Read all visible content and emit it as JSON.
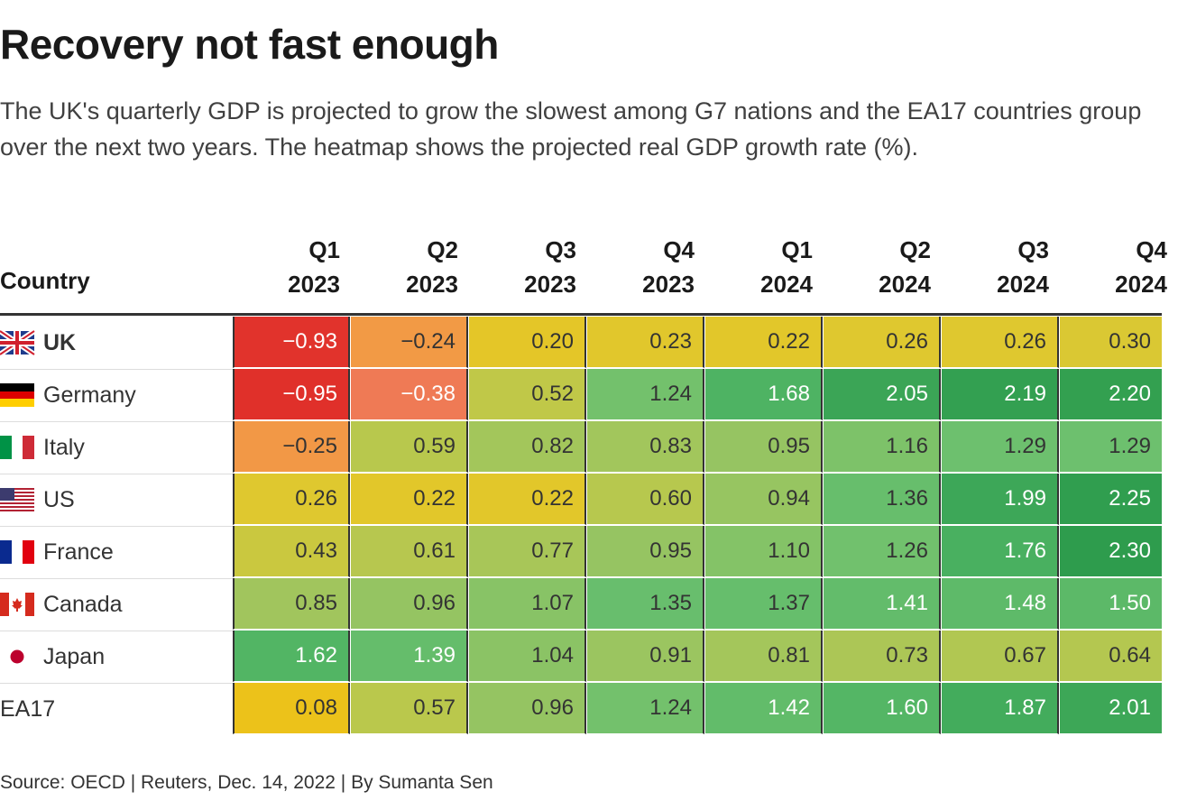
{
  "title": "Recovery not fast enough",
  "subtitle": "The UK's quarterly GDP is projected to grow the slowest among G7 nations and the EA17 countries group over the next two years. The heatmap shows the projected real GDP growth rate (%).",
  "source": "Source: OECD | Reuters, Dec. 14, 2022 | By Sumanta Sen",
  "country_header": "Country",
  "chart_data": {
    "type": "heatmap",
    "columns": [
      {
        "quarter": "Q1",
        "year": "2023"
      },
      {
        "quarter": "Q2",
        "year": "2023"
      },
      {
        "quarter": "Q3",
        "year": "2023"
      },
      {
        "quarter": "Q4",
        "year": "2023"
      },
      {
        "quarter": "Q1",
        "year": "2024"
      },
      {
        "quarter": "Q2",
        "year": "2024"
      },
      {
        "quarter": "Q3",
        "year": "2024"
      },
      {
        "quarter": "Q4",
        "year": "2024"
      }
    ],
    "rows": [
      {
        "country": "UK",
        "flag": "uk-flag-icon",
        "bold": true,
        "values": [
          -0.93,
          -0.24,
          0.2,
          0.23,
          0.22,
          0.26,
          0.26,
          0.3
        ],
        "labels": [
          "−0.93",
          "−0.24",
          "0.20",
          "0.23",
          "0.22",
          "0.26",
          "0.26",
          "0.30"
        ]
      },
      {
        "country": "Germany",
        "flag": "germany-flag-icon",
        "bold": false,
        "values": [
          -0.95,
          -0.38,
          0.52,
          1.24,
          1.68,
          2.05,
          2.19,
          2.2
        ],
        "labels": [
          "−0.95",
          "−0.38",
          "0.52",
          "1.24",
          "1.68",
          "2.05",
          "2.19",
          "2.20"
        ]
      },
      {
        "country": "Italy",
        "flag": "italy-flag-icon",
        "bold": false,
        "values": [
          -0.25,
          0.59,
          0.82,
          0.83,
          0.95,
          1.16,
          1.29,
          1.29
        ],
        "labels": [
          "−0.25",
          "0.59",
          "0.82",
          "0.83",
          "0.95",
          "1.16",
          "1.29",
          "1.29"
        ]
      },
      {
        "country": "US",
        "flag": "us-flag-icon",
        "bold": false,
        "values": [
          0.26,
          0.22,
          0.22,
          0.6,
          0.94,
          1.36,
          1.99,
          2.25
        ],
        "labels": [
          "0.26",
          "0.22",
          "0.22",
          "0.60",
          "0.94",
          "1.36",
          "1.99",
          "2.25"
        ]
      },
      {
        "country": "France",
        "flag": "france-flag-icon",
        "bold": false,
        "values": [
          0.43,
          0.61,
          0.77,
          0.95,
          1.1,
          1.26,
          1.76,
          2.3
        ],
        "labels": [
          "0.43",
          "0.61",
          "0.77",
          "0.95",
          "1.10",
          "1.26",
          "1.76",
          "2.30"
        ]
      },
      {
        "country": "Canada",
        "flag": "canada-flag-icon",
        "bold": false,
        "values": [
          0.85,
          0.96,
          1.07,
          1.35,
          1.37,
          1.41,
          1.48,
          1.5
        ],
        "labels": [
          "0.85",
          "0.96",
          "1.07",
          "1.35",
          "1.37",
          "1.41",
          "1.48",
          "1.50"
        ]
      },
      {
        "country": "Japan",
        "flag": "japan-flag-icon",
        "bold": false,
        "values": [
          1.62,
          1.39,
          1.04,
          0.91,
          0.81,
          0.73,
          0.67,
          0.64
        ],
        "labels": [
          "1.62",
          "1.39",
          "1.04",
          "0.91",
          "0.81",
          "0.73",
          "0.67",
          "0.64"
        ]
      },
      {
        "country": "EA17",
        "flag": "",
        "bold": false,
        "values": [
          0.08,
          0.57,
          0.96,
          1.24,
          1.42,
          1.6,
          1.87,
          2.01
        ],
        "labels": [
          "0.08",
          "0.57",
          "0.96",
          "1.24",
          "1.42",
          "1.60",
          "1.87",
          "2.01"
        ]
      }
    ],
    "color_scale": {
      "stops": [
        {
          "value": -0.95,
          "color": "#e0302a"
        },
        {
          "value": -0.38,
          "color": "#ef7a55"
        },
        {
          "value": -0.24,
          "color": "#f29a45"
        },
        {
          "value": 0.08,
          "color": "#ecc21a"
        },
        {
          "value": 0.25,
          "color": "#e0c82e"
        },
        {
          "value": 0.55,
          "color": "#bcc84b"
        },
        {
          "value": 0.9,
          "color": "#9cc560"
        },
        {
          "value": 1.3,
          "color": "#6cc06e"
        },
        {
          "value": 1.7,
          "color": "#4cb262"
        },
        {
          "value": 2.3,
          "color": "#2e9c4d"
        }
      ],
      "light_text_color": "#ffffff",
      "dark_text_color": "#333333"
    }
  }
}
